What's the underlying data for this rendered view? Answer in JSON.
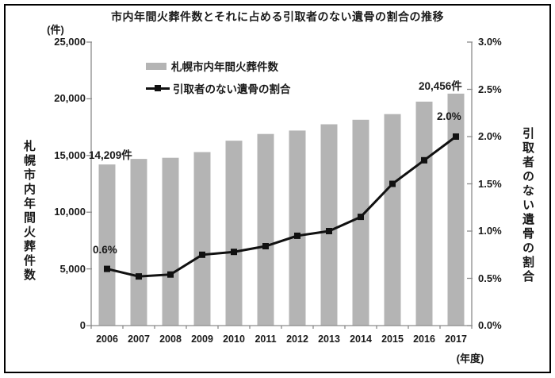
{
  "title": "市内年間火葬件数とそれに占める引取者のない遺骨の割合の推移",
  "legend": {
    "items": [
      {
        "label": "札幌市内年間火葬件数",
        "marker": "bar-swatch"
      },
      {
        "label": "引取者のない遺骨の割合",
        "marker": "line-square-swatch"
      }
    ]
  },
  "annotations": {
    "first_bar_value": "14,209件",
    "first_line_value": "0.6%",
    "last_bar_value": "20,456件",
    "last_line_value": "2.0%"
  },
  "colors": {
    "bar": "#b4b4b4",
    "line": "#111111",
    "marker": "#111111",
    "axis": "#8c8c8c",
    "text": "#1a1a1a",
    "border": "#000000",
    "background": "#ffffff"
  },
  "chart_data": {
    "type": "bar",
    "subtype": "combo-bar-line",
    "title": "市内年間火葬件数とそれに占める引取者のない遺骨の割合の推移",
    "categories": [
      "2006",
      "2007",
      "2008",
      "2009",
      "2010",
      "2011",
      "2012",
      "2013",
      "2014",
      "2015",
      "2016",
      "2017"
    ],
    "series": [
      {
        "name": "札幌市内年間火葬件数",
        "type": "bar",
        "axis": "left",
        "values": [
          14209,
          14700,
          14800,
          15300,
          16300,
          16900,
          17200,
          17750,
          18150,
          18650,
          19750,
          20456
        ]
      },
      {
        "name": "引取者のない遺骨の割合",
        "type": "line",
        "axis": "right",
        "values": [
          0.6,
          0.52,
          0.54,
          0.75,
          0.78,
          0.84,
          0.95,
          1.0,
          1.15,
          1.5,
          1.75,
          2.0
        ]
      }
    ],
    "left_axis": {
      "unit": "(件)",
      "title": "札幌市内年間火葬件数",
      "min": 0,
      "max": 25000,
      "tick_step": 5000,
      "ticks": [
        "25,000",
        "20,000",
        "15,000",
        "10,000",
        "5,000",
        "0"
      ]
    },
    "right_axis": {
      "title": "引取者のない遺骨の割合",
      "min": 0,
      "max": 3.0,
      "tick_step": 0.5,
      "ticks": [
        "3.0%",
        "2.5%",
        "2.0%",
        "1.5%",
        "1.0%",
        "0.5%",
        "0.0%"
      ]
    },
    "x_axis": {
      "unit": "(年度)"
    },
    "grid": false,
    "legend_position": "inside-top-left"
  }
}
